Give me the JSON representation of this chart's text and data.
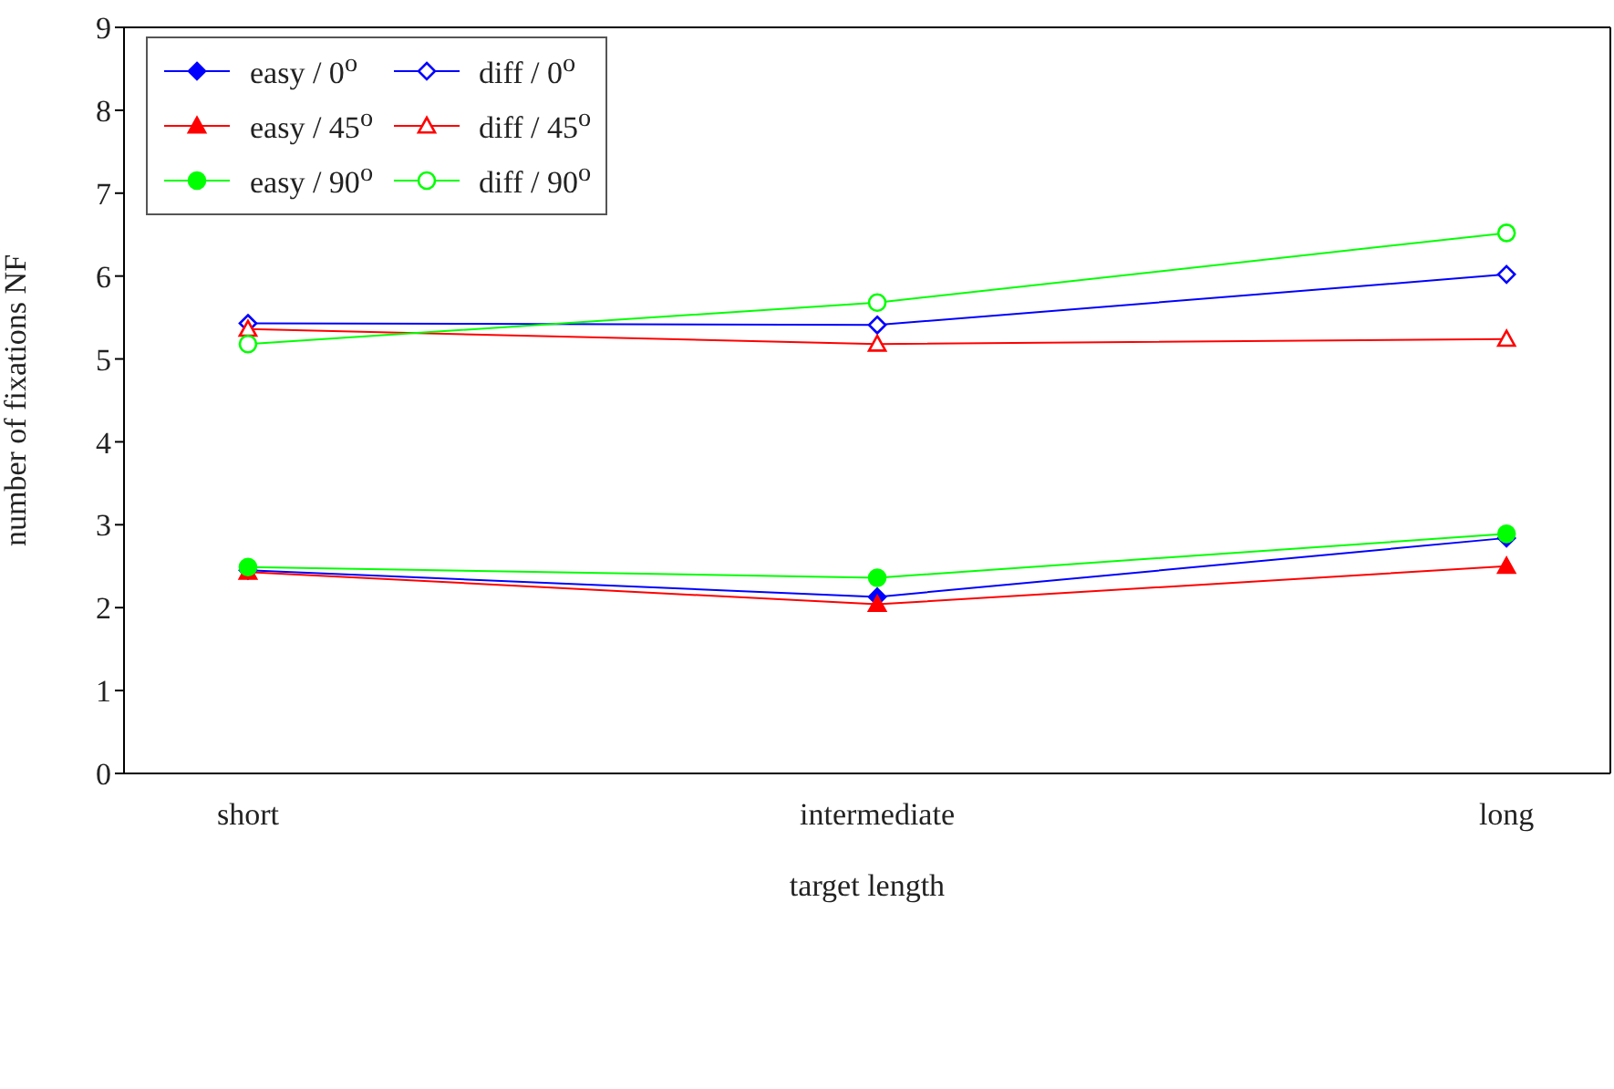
{
  "chart_data": {
    "type": "line",
    "xlabel": "target length",
    "ylabel": "number of fixations NF",
    "categories": [
      "short",
      "intermediate",
      "long"
    ],
    "ylim": [
      0,
      9
    ],
    "yticks": [
      0,
      1,
      2,
      3,
      4,
      5,
      6,
      7,
      8,
      9
    ],
    "grid": false,
    "legend": "top left",
    "line_style": "solid",
    "series": [
      {
        "name": "easy / 0$^{o}$",
        "color": "#0000ff",
        "marker": "diamond",
        "values": [
          2.45,
          2.13,
          2.84
        ]
      },
      {
        "name": "diff / 0$^{o}$",
        "color": "#0000ff",
        "marker": "diamond",
        "values": [
          5.43,
          5.41,
          6.02
        ]
      },
      {
        "name": "easy / 45$^{o}$",
        "color": "#ff0000",
        "marker": "triangle",
        "values": [
          2.43,
          2.04,
          2.5
        ]
      },
      {
        "name": "diff / 45$^{o}$",
        "color": "#ff0000",
        "marker": "triangle",
        "values": [
          5.36,
          5.18,
          5.24
        ]
      },
      {
        "name": "easy / 90$^{o}$",
        "color": "#00ff00",
        "marker": "circle",
        "values": [
          2.49,
          2.36,
          2.89
        ]
      },
      {
        "name": "diff / 90$^{o}$",
        "color": "#00ff00",
        "marker": "circle",
        "values": [
          5.18,
          5.68,
          6.52
        ]
      }
    ]
  }
}
